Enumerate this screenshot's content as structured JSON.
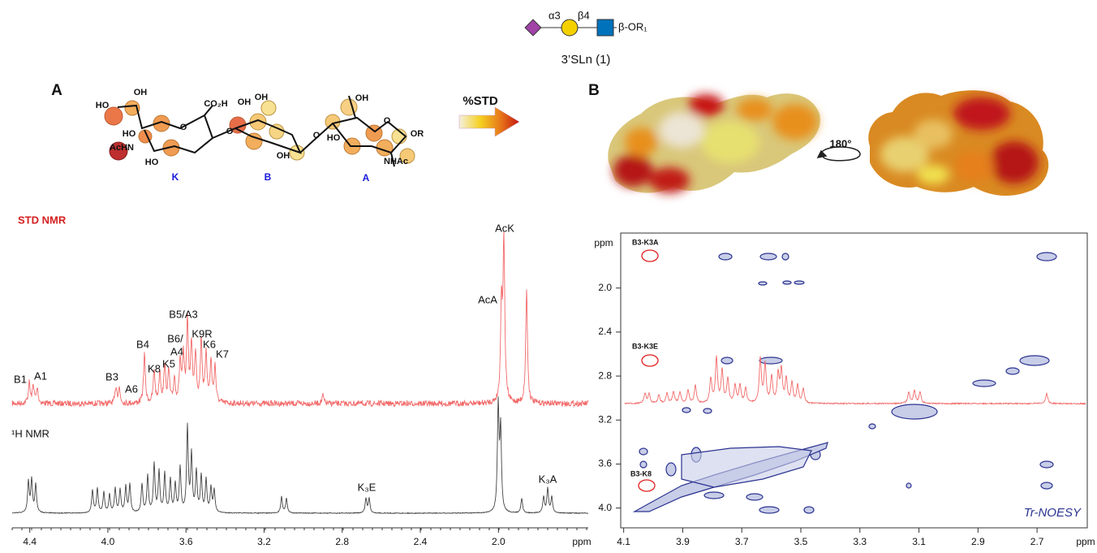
{
  "header": {
    "glycan": {
      "linkage1": "α3",
      "linkage2": "β4",
      "aglycone": "β-OR₁"
    },
    "title": "3’SLn (1)"
  },
  "panel_a": {
    "label": "A",
    "structure": {
      "labels": [
        "HO",
        "OH",
        "HO",
        "AcHN",
        "HO",
        "CO₂H",
        "O",
        "OH",
        "OH",
        "O",
        "OH",
        "O",
        "OH",
        "HO",
        "O",
        "OR",
        "NHAc"
      ],
      "residues": [
        "K",
        "B",
        "A"
      ]
    },
    "arrow_label": "%STD",
    "std": {
      "label": "STD NMR",
      "peaks": [
        "B1",
        "A1",
        "B3",
        "A6",
        "B4",
        "K8",
        "K5",
        "B6/",
        "A4",
        "B5/A3",
        "K9R",
        "K6",
        "K7",
        "AcA",
        "AcK"
      ]
    },
    "h1": {
      "label": "¹H NMR",
      "peaks": [
        "K₃E",
        "K₃A"
      ]
    },
    "axis": {
      "xlim": [
        4.49,
        1.54
      ],
      "xticks": [
        {
          "value": 4.4,
          "label": "4.4"
        },
        {
          "value": 4,
          "label": "4.0"
        },
        {
          "value": 3.6,
          "label": "3.6"
        },
        {
          "value": 3.2,
          "label": "3.2"
        },
        {
          "value": 2.8,
          "label": "2.8"
        },
        {
          "value": 2.4,
          "label": "2.4"
        },
        {
          "value": 2,
          "label": "2.0"
        }
      ],
      "unit": "ppm"
    }
  },
  "panel_b": {
    "label": "B",
    "rotation": "180°",
    "noesy": {
      "ylabel": "ppm",
      "ylim": [
        1.5,
        4.18
      ],
      "yticks": [
        {
          "value": 2,
          "label": "2.0"
        },
        2.4,
        2.8,
        3.2,
        3.6,
        {
          "value": 4,
          "label": "4.0"
        }
      ],
      "xlim": [
        4.11,
        2.53
      ],
      "xticks": [
        4.1,
        3.9,
        3.7,
        3.5,
        3.3,
        3.1,
        2.9,
        2.7
      ],
      "xunit": "ppm",
      "annotations": [
        "B3-K3A",
        "B3-K3E",
        "B3-K8"
      ],
      "title": "Tr-NOESY"
    }
  }
}
